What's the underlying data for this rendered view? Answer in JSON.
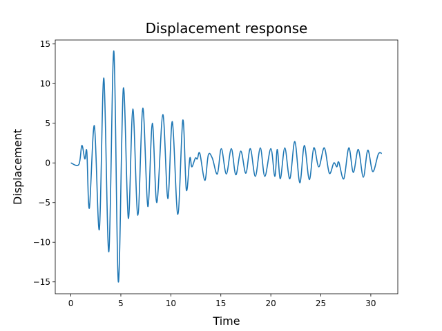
{
  "chart_data": {
    "type": "line",
    "title": "Displacement response",
    "xlabel": "Time",
    "ylabel": "Displacement",
    "x": [
      0,
      0.8,
      1.1,
      1.4,
      1.6,
      1.85,
      2.35,
      2.85,
      3.3,
      3.8,
      4.3,
      4.75,
      5.25,
      5.75,
      6.2,
      6.7,
      7.2,
      7.7,
      8.15,
      8.6,
      9.2,
      9.7,
      10.15,
      10.7,
      11.2,
      11.55,
      11.9,
      12.1,
      12.45,
      12.65,
      12.9,
      13.4,
      13.75,
      14.15,
      14.65,
      15.05,
      15.55,
      16.05,
      16.5,
      17,
      17.5,
      17.95,
      18.45,
      18.95,
      19.4,
      20,
      20.4,
      20.65,
      20.95,
      21.4,
      21.9,
      22.4,
      22.9,
      23.35,
      23.85,
      24.3,
      24.8,
      25.35,
      25.85,
      26.3,
      26.6,
      26.8,
      27.3,
      27.8,
      28.25,
      28.75,
      29.25,
      29.7,
      30.2,
      30.75,
      31.1
    ],
    "series": [
      {
        "name": "Displacement",
        "color": "#1f77b4",
        "values": [
          0,
          -0.2,
          2.2,
          0.5,
          1.4,
          -5.7,
          4.7,
          -8.4,
          10.7,
          -11.2,
          14.1,
          -15,
          9.4,
          -7,
          6.8,
          -6.6,
          6.9,
          -5.5,
          5,
          -5,
          6.1,
          -4.5,
          5.2,
          -6.5,
          5.4,
          -3.4,
          0.6,
          -0.5,
          0.6,
          0.5,
          1.2,
          -2.2,
          1,
          0.6,
          -1.4,
          1.8,
          -1.4,
          1.8,
          -1.5,
          1.5,
          -1.3,
          1.8,
          -1.7,
          1.9,
          -1.7,
          1.8,
          -1.7,
          1.7,
          -2,
          1.9,
          -2,
          2.7,
          -2.5,
          2.2,
          -2.1,
          1.9,
          -0.5,
          1.9,
          -1.3,
          0,
          -0.5,
          0.1,
          -2,
          1.9,
          -1.2,
          1.7,
          -1.8,
          1.6,
          -1.1,
          1.1,
          1.2
        ]
      }
    ],
    "xlim": [
      -1.56,
      32.7
    ],
    "ylim": [
      -16.5,
      15.5
    ],
    "xticks": [
      0,
      5,
      10,
      15,
      20,
      25,
      30
    ],
    "yticks": [
      {
        "value": -15,
        "label": "−15"
      },
      {
        "value": -10,
        "label": "−10"
      },
      {
        "value": -5,
        "label": "−5"
      },
      0,
      5,
      10,
      15
    ],
    "grid": false
  }
}
